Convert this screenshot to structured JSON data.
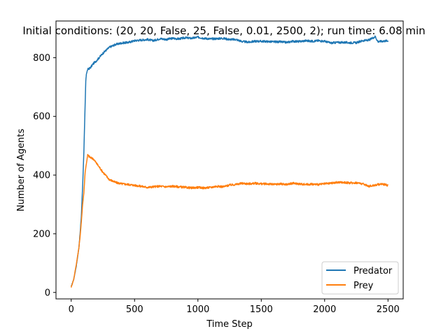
{
  "chart_data": {
    "type": "line",
    "title": "Initial conditions: (20, 20, False, 25, False, 0.01, 2500, 2); run time: 6.08 min",
    "xlabel": "Time Step",
    "ylabel": "Number of Agents",
    "xlim": [
      -120,
      2620
    ],
    "ylim": [
      -22,
      925
    ],
    "xticks": [
      0,
      500,
      1000,
      1500,
      2000,
      2500
    ],
    "yticks": [
      0,
      200,
      400,
      600,
      800
    ],
    "grid": false,
    "legend": "lower-right",
    "series": [
      {
        "name": "Predator",
        "color": "#1f77b4",
        "x": [
          0,
          20,
          40,
          60,
          70,
          80,
          90,
          100,
          110,
          115,
          120,
          130,
          150,
          175,
          200,
          250,
          300,
          350,
          400,
          450,
          500,
          550,
          600,
          650,
          700,
          750,
          800,
          850,
          900,
          950,
          1000,
          1050,
          1100,
          1150,
          1200,
          1250,
          1300,
          1350,
          1400,
          1450,
          1500,
          1550,
          1600,
          1650,
          1700,
          1750,
          1800,
          1850,
          1900,
          1950,
          2000,
          2050,
          2100,
          2150,
          2200,
          2250,
          2300,
          2350,
          2400,
          2420,
          2450,
          2500
        ],
        "y": [
          20,
          45,
          90,
          150,
          200,
          260,
          360,
          480,
          640,
          720,
          745,
          760,
          765,
          780,
          790,
          815,
          835,
          845,
          850,
          852,
          858,
          860,
          862,
          858,
          865,
          862,
          866,
          864,
          868,
          866,
          870,
          866,
          864,
          865,
          866,
          862,
          862,
          855,
          853,
          856,
          856,
          855,
          854,
          854,
          852,
          856,
          855,
          858,
          856,
          858,
          856,
          850,
          852,
          852,
          851,
          851,
          858,
          860,
          872,
          855,
          856,
          858
        ]
      },
      {
        "name": "Prey",
        "color": "#ff7f0e",
        "x": [
          0,
          20,
          40,
          60,
          70,
          80,
          90,
          100,
          110,
          120,
          130,
          150,
          175,
          200,
          250,
          300,
          350,
          400,
          450,
          500,
          550,
          600,
          650,
          700,
          750,
          800,
          850,
          900,
          950,
          1000,
          1050,
          1100,
          1150,
          1200,
          1250,
          1300,
          1350,
          1400,
          1450,
          1500,
          1550,
          1600,
          1650,
          1700,
          1750,
          1800,
          1850,
          1900,
          1950,
          2000,
          2050,
          2100,
          2150,
          2200,
          2250,
          2300,
          2350,
          2400,
          2450,
          2500
        ],
        "y": [
          18,
          45,
          95,
          150,
          190,
          240,
          300,
          340,
          410,
          440,
          468,
          460,
          455,
          440,
          410,
          385,
          375,
          370,
          368,
          365,
          362,
          358,
          360,
          362,
          360,
          362,
          360,
          358,
          356,
          358,
          356,
          358,
          362,
          360,
          366,
          368,
          372,
          370,
          372,
          370,
          370,
          368,
          370,
          368,
          372,
          370,
          368,
          369,
          368,
          370,
          372,
          375,
          375,
          373,
          374,
          370,
          362,
          366,
          370,
          365
        ]
      }
    ]
  }
}
